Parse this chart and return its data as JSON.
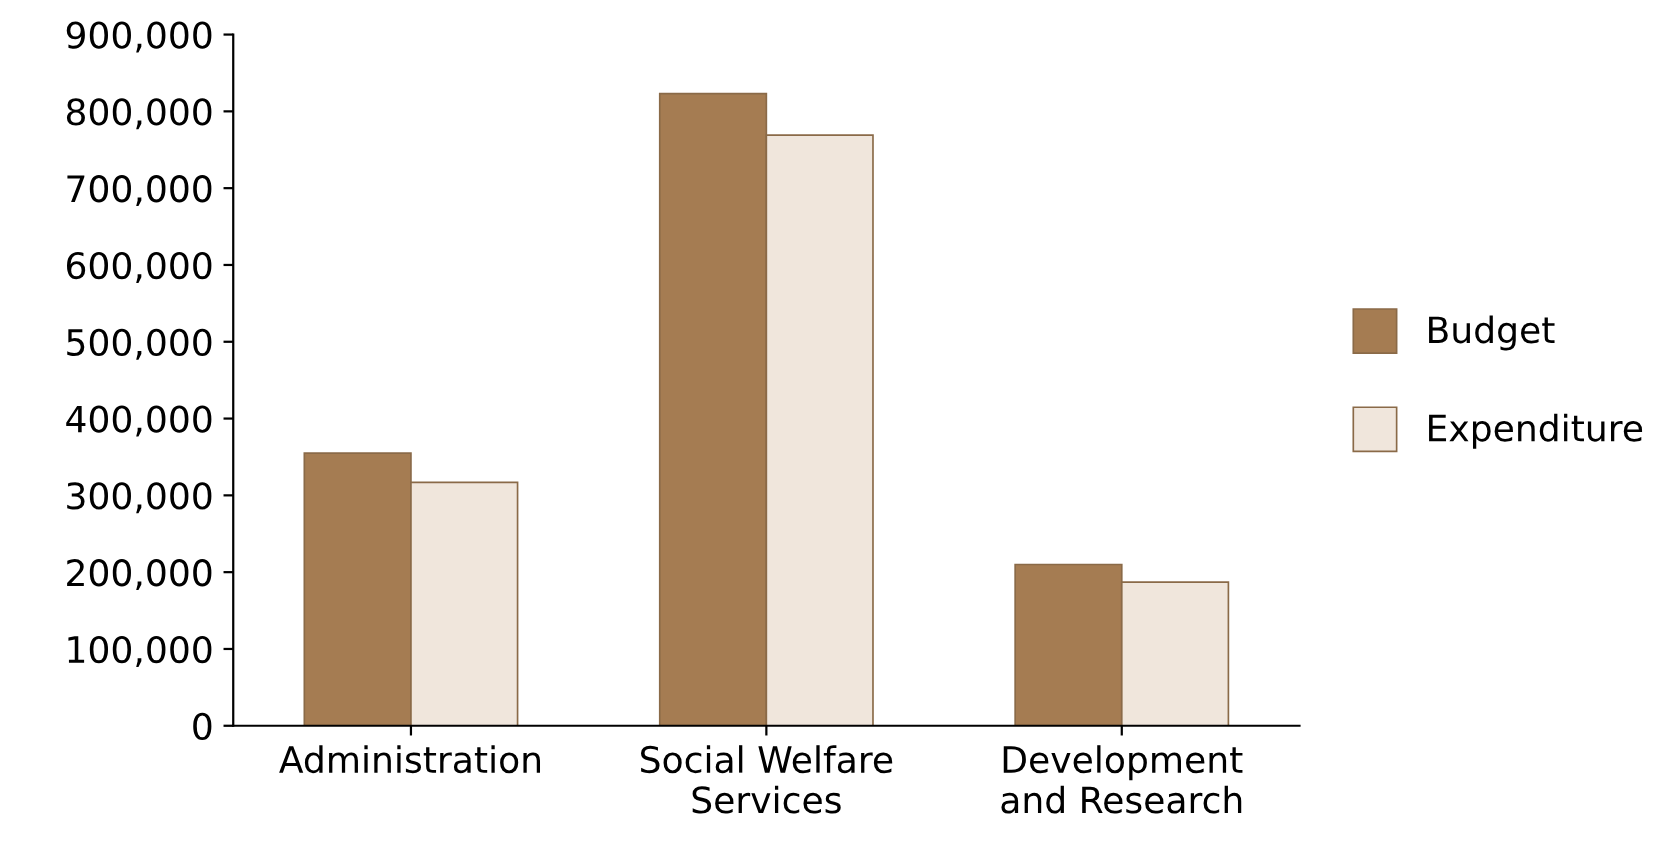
{
  "chart_data": {
    "type": "bar",
    "categories": [
      "Administration",
      "Social Welfare\nServices",
      "Development\nand Research"
    ],
    "series": [
      {
        "name": "Budget",
        "color": "#a57c52",
        "values": [
          355000,
          823000,
          210000
        ]
      },
      {
        "name": "Expenditure",
        "color": "#f0e6dc",
        "values": [
          317000,
          769000,
          187000
        ]
      }
    ],
    "ylim": [
      0,
      900000
    ],
    "yticks": [
      {
        "value": 0,
        "label": "0"
      },
      {
        "value": 100000,
        "label": "100,000"
      },
      {
        "value": 200000,
        "label": "200,000"
      },
      {
        "value": 300000,
        "label": "300,000"
      },
      {
        "value": 400000,
        "label": "400,000"
      },
      {
        "value": 500000,
        "label": "500,000"
      },
      {
        "value": 600000,
        "label": "600,000"
      },
      {
        "value": 700000,
        "label": "700,000"
      },
      {
        "value": 800000,
        "label": "800,000"
      },
      {
        "value": 900000,
        "label": "900,000"
      }
    ],
    "grid": false,
    "legend": "right"
  }
}
